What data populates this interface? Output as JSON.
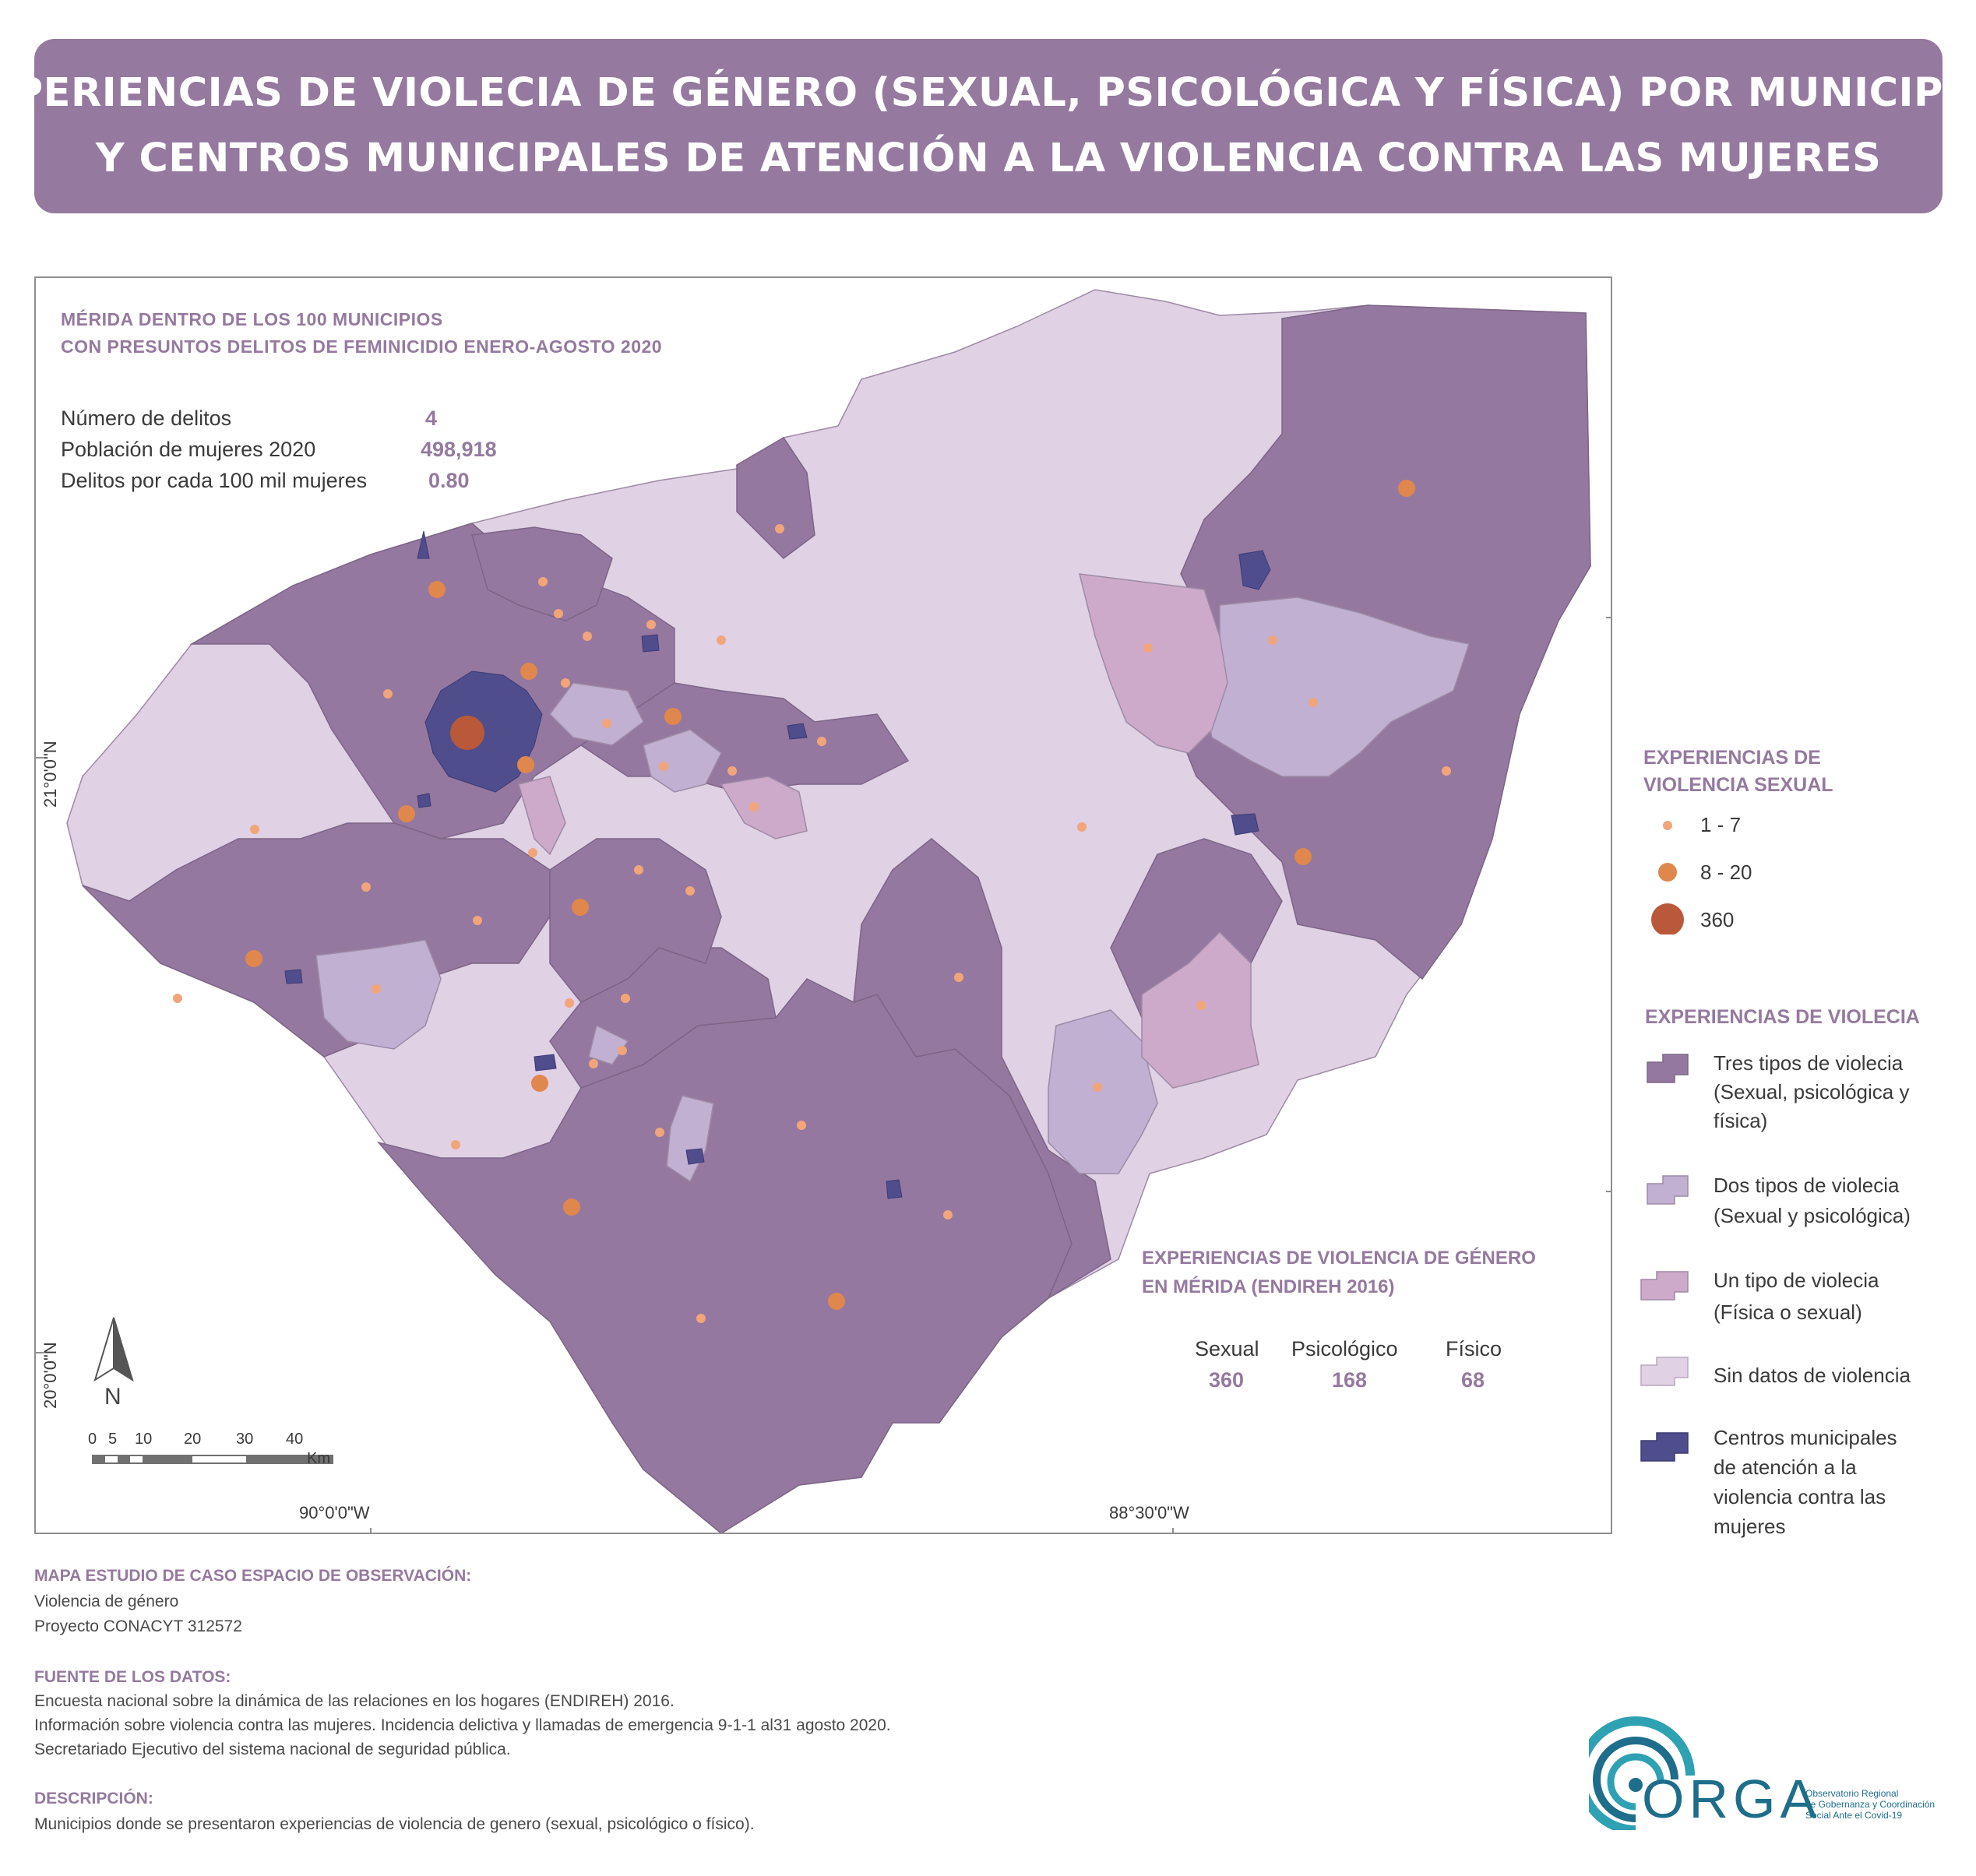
{
  "title": {
    "line1": "EXPERIENCIAS DE VIOLECIA DE GÉNERO (SEXUAL, PSICOLÓGICA Y FÍSICA) POR MUNICIPIOS",
    "line2": "Y  CENTROS MUNICIPALES DE ATENCIÓN A LA VIOLENCIA CONTRA LAS MUJERES"
  },
  "merida_box": {
    "heading_line1": "MÉRIDA DENTRO DE LOS 100 MUNICIPIOS",
    "heading_line2": "CON PRESUNTOS DELITOS DE FEMINICIDIO ENERO-AGOSTO 2020",
    "stats": [
      {
        "label": "Número de delitos",
        "value": "4"
      },
      {
        "label": "Población de mujeres 2020",
        "value": "498,918"
      },
      {
        "label": "Delitos por cada 100 mil mujeres",
        "value": "0.80"
      }
    ]
  },
  "endireh_box": {
    "heading_line1": "EXPERIENCIAS  DE  VIOLENCIA  DE  GÉNERO",
    "heading_line2": "EN MÉRIDA (ENDIREH 2016)",
    "items": [
      {
        "label": "Sexual",
        "value": "360"
      },
      {
        "label": "Psicológico",
        "value": "168"
      },
      {
        "label": "Físico",
        "value": "68"
      }
    ]
  },
  "coordinates": {
    "lat_21": "21°0'0\"N",
    "lat_20": "20°0'0\"N",
    "lon_90": "90°0'0\"W",
    "lon_88": "88°30'0\"W"
  },
  "north_arrow": {
    "label": "N"
  },
  "scale_bar": {
    "ticks": [
      "0",
      "5",
      "10",
      "20",
      "30",
      "40"
    ],
    "unit": "Km"
  },
  "legend_sexual": {
    "title_line1": "EXPERIENCIAS DE",
    "title_line2": "VIOLENCIA SEXUAL",
    "classes": [
      {
        "label": "1 - 7",
        "color": "#f1a57a"
      },
      {
        "label": "8 - 20",
        "color": "#e0874d"
      },
      {
        "label": "360",
        "color": "#b9593a"
      }
    ]
  },
  "legend_violencia": {
    "title": "EXPERIENCIAS DE VIOLECIA",
    "classes": [
      {
        "lines": [
          "Tres tipos de violecia",
          "(Sexual, psicológica y",
          "física)"
        ],
        "color": "#95789f"
      },
      {
        "lines": [
          "Dos tipos de violecia",
          "(Sexual y psicológica)"
        ],
        "color": "#c2b0d3"
      },
      {
        "lines": [
          "Un tipo de violecia",
          "(Física o sexual)"
        ],
        "color": "#cdaac9"
      },
      {
        "lines": [
          "Sin datos de violencia"
        ],
        "color": "#e0d1e5"
      },
      {
        "lines": [
          "Centros municipales",
          "de atención a la",
          "violencia contra las",
          "mujeres"
        ],
        "color": "#4f4d8c"
      }
    ]
  },
  "footer": {
    "mapa_title": "MAPA ESTUDIO DE CASO ESPACIO DE OBSERVACIÓN:",
    "mapa_lines": [
      "Violencia de género",
      "Proyecto CONACYT 312572"
    ],
    "fuente_title": "FUENTE DE LOS DATOS:",
    "fuente_lines": [
      "Encuesta nacional sobre la dinámica de las relaciones en los hogares (ENDIREH) 2016.",
      "Información sobre violencia contra las mujeres. Incidencia delictiva y llamadas de emergencia 9-1-1 al31 agosto 2020.",
      "Secretariado Ejecutivo del sistema nacional de seguridad pública."
    ],
    "descripcion_title": "DESCRIPCIÓN:",
    "descripcion_lines": [
      "Municipios donde se presentaron experiencias de violencia de genero (sexual, psicológico o físico)."
    ]
  },
  "logo": {
    "wordmark": "ORGA",
    "tagline": [
      "Observatorio Regional",
      "de Gobernanza y Coordinación",
      "Social Ante el Covid-19"
    ],
    "color": "#1e6d8a",
    "accent": "#2ea1b3"
  }
}
